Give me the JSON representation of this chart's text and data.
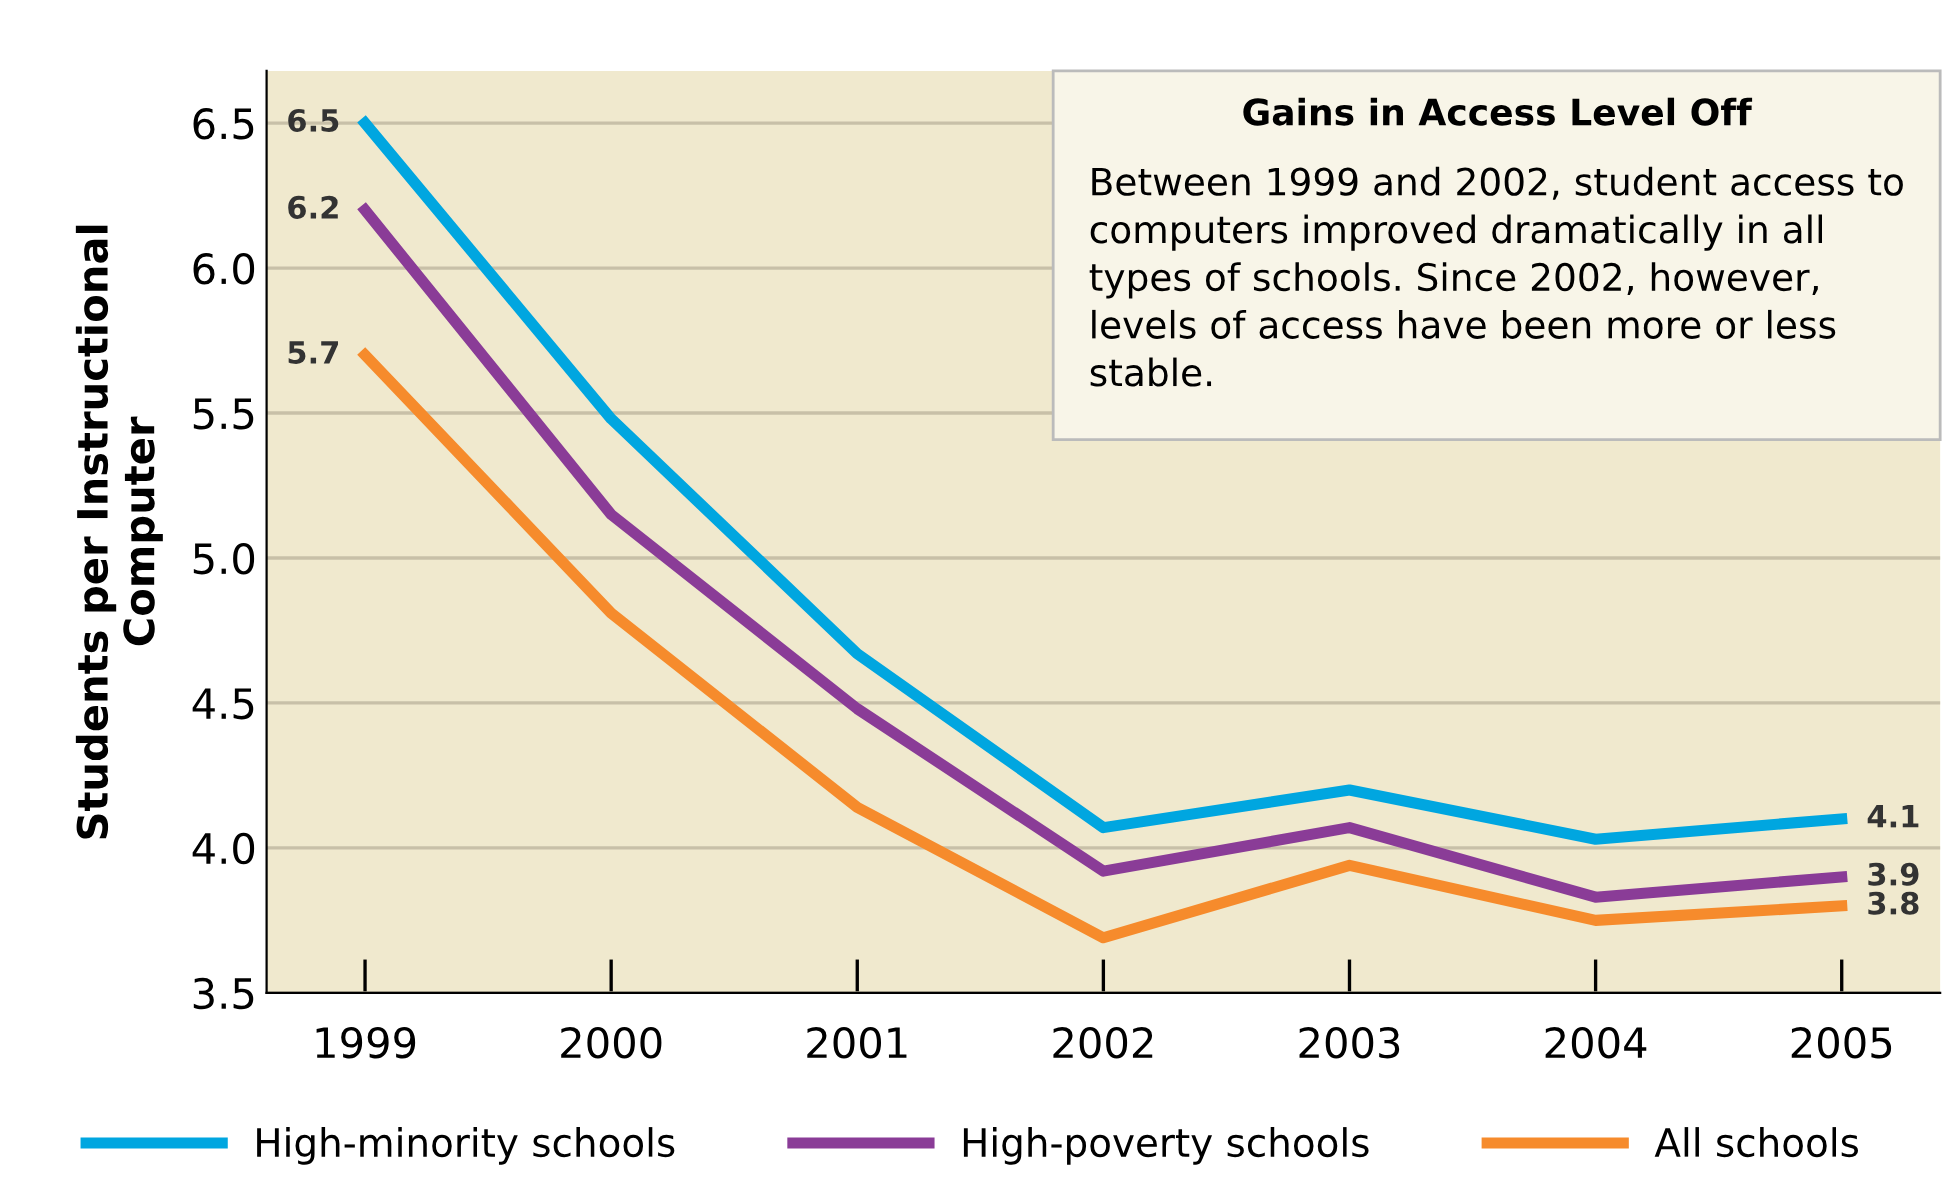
{
  "chart_data": {
    "type": "line",
    "ylabel": "Students per Instructional\nComputer",
    "categories": [
      "1999",
      "2000",
      "2001",
      "2002",
      "2003",
      "2004",
      "2005"
    ],
    "series": [
      {
        "name": "High-minority schools",
        "color": "#00a6e0",
        "values": [
          6.5,
          5.48,
          4.67,
          4.07,
          4.2,
          4.03,
          4.1
        ],
        "value_labels": [
          "6.5",
          null,
          null,
          null,
          null,
          null,
          "4.1"
        ]
      },
      {
        "name": "High-poverty schools",
        "color": "#8a3c97",
        "values": [
          6.2,
          5.15,
          4.48,
          3.92,
          4.07,
          3.83,
          3.9
        ],
        "value_labels": [
          "6.2",
          null,
          null,
          null,
          null,
          null,
          "3.9"
        ]
      },
      {
        "name": "All schools",
        "color": "#f68b2c",
        "values": [
          5.7,
          4.81,
          4.14,
          3.69,
          3.94,
          3.75,
          3.8
        ],
        "value_labels": [
          "5.7",
          null,
          null,
          null,
          null,
          null,
          "3.8"
        ]
      }
    ],
    "ylim": [
      3.5,
      6.68
    ],
    "yticks": [
      3.5,
      {
        "value": 4,
        "label": "4.0"
      },
      4.5,
      {
        "value": 5,
        "label": "5.0"
      },
      5.5,
      {
        "value": 6,
        "label": "6.0"
      },
      6.5
    ],
    "grid": "y",
    "legend": "bottom",
    "marker": "none",
    "line_style": "solid",
    "annotations": [
      "Gains in Access Level Off",
      "Between 1999 and 2002, student access to computers improved dramatically in all types of schools. Since 2002, however, levels of access have been more or less stable."
    ]
  }
}
